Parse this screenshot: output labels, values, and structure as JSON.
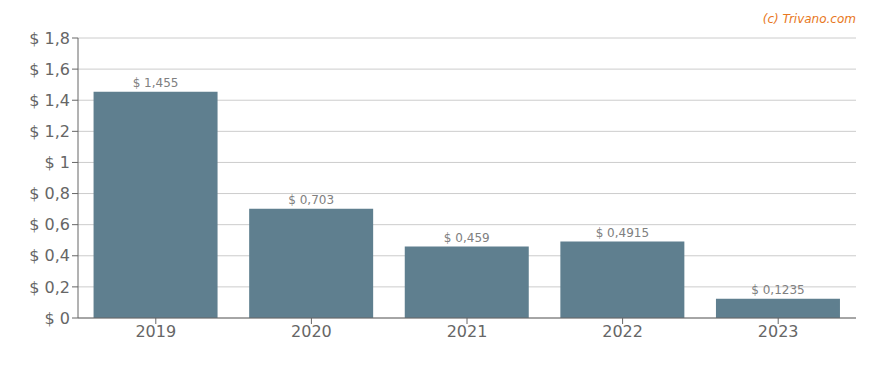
{
  "chart_data": {
    "type": "bar",
    "categories": [
      "2019",
      "2020",
      "2021",
      "2022",
      "2023"
    ],
    "values": [
      1.455,
      0.703,
      0.459,
      0.4915,
      0.1235
    ],
    "value_labels": [
      "$ 1,455",
      "$ 0,703",
      "$ 0,459",
      "$ 0,4915",
      "$ 0,1235"
    ],
    "data_labels": true,
    "color": "#5f7f8f",
    "ylim": [
      0,
      1.8
    ],
    "yticks": [
      {
        "value": 0,
        "label": "$ 0"
      },
      {
        "value": 0.2,
        "label": "$ 0,2"
      },
      {
        "value": 0.4,
        "label": "$ 0,4"
      },
      {
        "value": 0.6,
        "label": "$ 0,6"
      },
      {
        "value": 0.8,
        "label": "$ 0,8"
      },
      {
        "value": 1.0,
        "label": "$ 1"
      },
      {
        "value": 1.2,
        "label": "$ 1,2"
      },
      {
        "value": 1.4,
        "label": "$ 1,4"
      },
      {
        "value": 1.6,
        "label": "$ 1,6"
      },
      {
        "value": 1.8,
        "label": "$ 1,8"
      }
    ],
    "grid": true,
    "annotations": [
      {
        "text": "(c) Trivano.com",
        "color": "#e87722"
      }
    ]
  }
}
